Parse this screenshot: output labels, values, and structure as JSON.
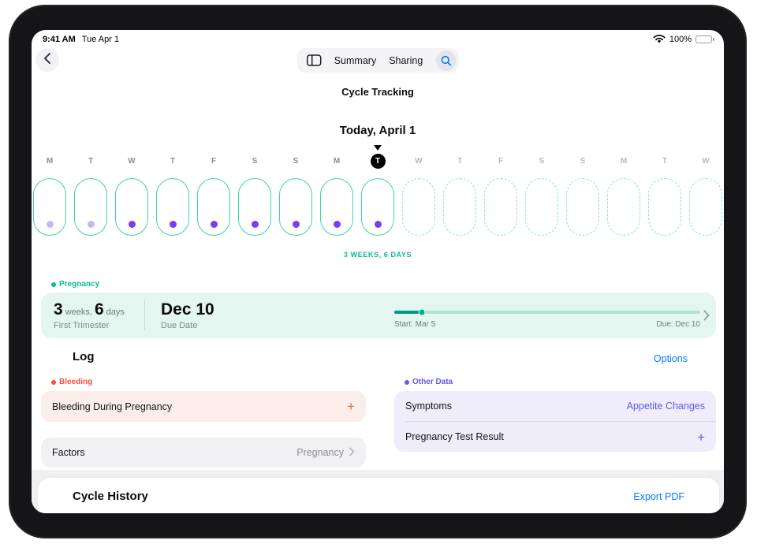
{
  "colors": {
    "teal": "#0FB893",
    "teal-outline": "#3FD3A9",
    "teal-outline-light": "#8CE4C6",
    "mint-bg": "#E3F7F0",
    "purple": "#5E5CE6",
    "purple-dot": "#7A3DF0",
    "purple-dot-light": "#C8B6F3",
    "lavender-bg": "#EEEDF9",
    "red": "#FF4F38",
    "salmon": "#E06950",
    "pink-bg": "#FBEEEA",
    "gray-bg": "#F1F1F4",
    "link-blue": "#007AFF"
  },
  "status_bar": {
    "time": "9:41 AM",
    "date": "Tue Apr 1",
    "battery": "100%"
  },
  "nav": {
    "summary": "Summary",
    "sharing": "Sharing",
    "title": "Cycle Tracking"
  },
  "timeline": {
    "today": "Today, April 1",
    "caption": "3 WEEKS, 6 DAYS",
    "days": [
      {
        "letter": "M",
        "state": "past",
        "dot": "light"
      },
      {
        "letter": "T",
        "state": "past",
        "dot": "light"
      },
      {
        "letter": "W",
        "state": "past",
        "dot": "dark"
      },
      {
        "letter": "T",
        "state": "past",
        "dot": "dark"
      },
      {
        "letter": "F",
        "state": "past",
        "dot": "dark"
      },
      {
        "letter": "S",
        "state": "past",
        "dot": "dark"
      },
      {
        "letter": "S",
        "state": "past",
        "dot": "dark"
      },
      {
        "letter": "M",
        "state": "past",
        "dot": "dark"
      },
      {
        "letter": "T",
        "state": "today",
        "dot": "dark"
      },
      {
        "letter": "W",
        "state": "future",
        "dot": null
      },
      {
        "letter": "T",
        "state": "future",
        "dot": null
      },
      {
        "letter": "F",
        "state": "future",
        "dot": null
      },
      {
        "letter": "S",
        "state": "future",
        "dot": null
      },
      {
        "letter": "S",
        "state": "future",
        "dot": null
      },
      {
        "letter": "M",
        "state": "future",
        "dot": null
      },
      {
        "letter": "T",
        "state": "future",
        "dot": null
      },
      {
        "letter": "W",
        "state": "future",
        "dot": null
      }
    ]
  },
  "pregnancy": {
    "label": "Pregnancy",
    "weeks_value": "3",
    "weeks_unit": "weeks,",
    "days_value": "6",
    "days_unit": "days",
    "trimester": "First Trimester",
    "due_value": "Dec 10",
    "due_caption": "Due Date",
    "start_text": "Start: Mar 5",
    "due_text": "Due: Dec 10",
    "progress_percent": 9
  },
  "log": {
    "heading": "Log",
    "options": "Options",
    "bleeding_label": "Bleeding",
    "bleeding_item": "Bleeding During Pregnancy",
    "bleeding_add": "+",
    "factors_label": "Factors",
    "factors_value": "Pregnancy",
    "other_label": "Other Data",
    "symptoms_label": "Symptoms",
    "symptoms_value": "Appetite Changes",
    "test_label": "Pregnancy Test Result",
    "test_add": "+"
  },
  "history": {
    "heading": "Cycle History",
    "export": "Export PDF"
  }
}
